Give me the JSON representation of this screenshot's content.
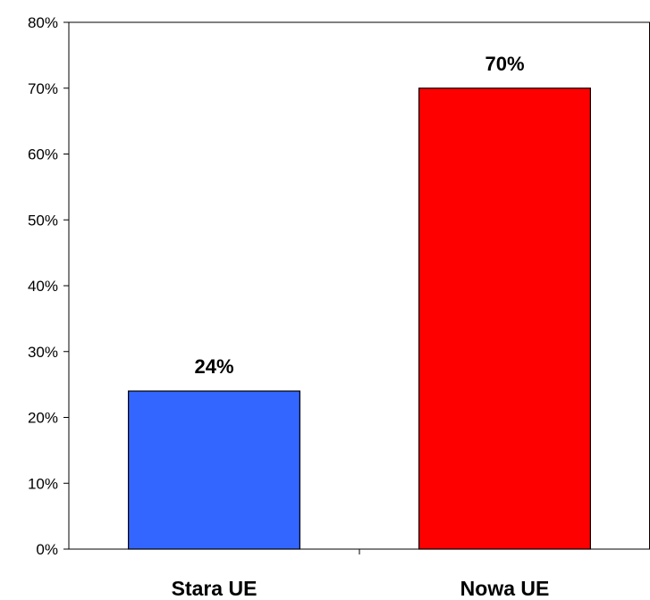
{
  "chart_data": {
    "type": "bar",
    "categories": [
      "Stara UE",
      "Nowa UE"
    ],
    "values": [
      24,
      70
    ],
    "data_labels": [
      "24%",
      "70%"
    ],
    "colors": [
      "#3366ff",
      "#ff0000"
    ],
    "ylim": [
      0,
      80
    ],
    "y_ticks": [
      0,
      10,
      20,
      30,
      40,
      50,
      60,
      70,
      80
    ],
    "y_tick_labels": [
      "0%",
      "10%",
      "20%",
      "30%",
      "40%",
      "50%",
      "60%",
      "70%",
      "80%"
    ],
    "grid": false,
    "legend": "none"
  }
}
